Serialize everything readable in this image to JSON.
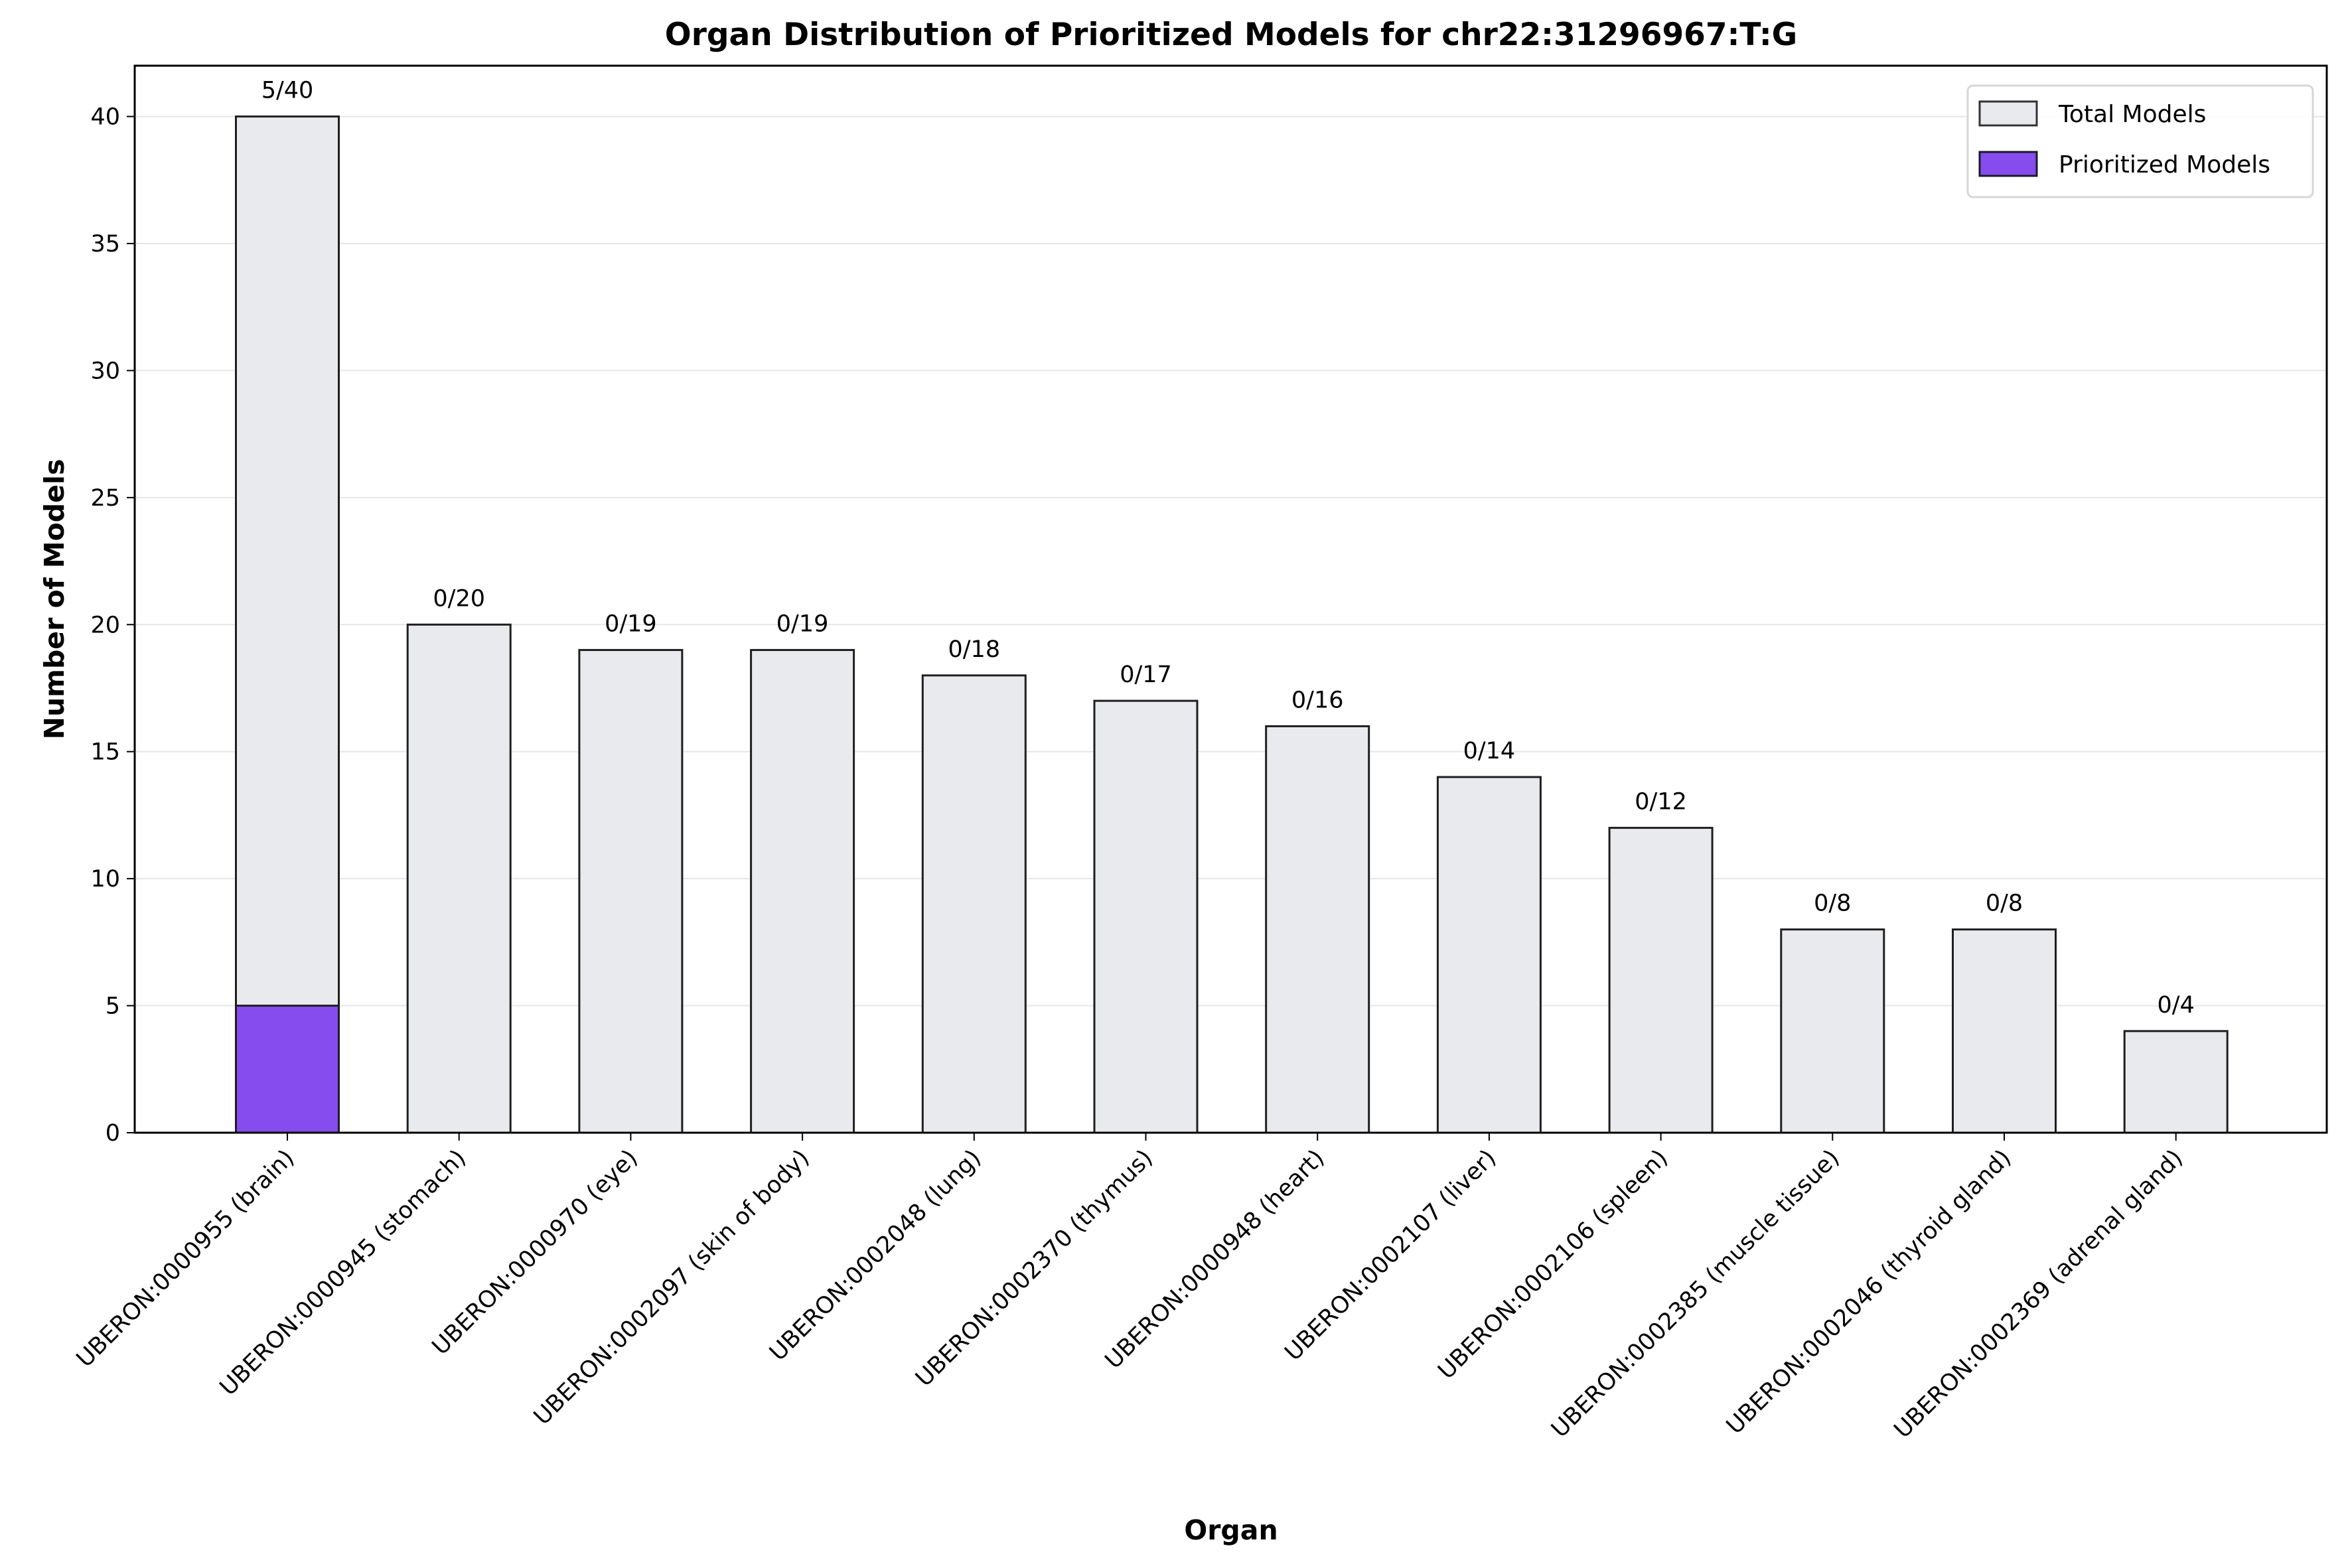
{
  "chart_data": {
    "type": "bar",
    "title": "Organ Distribution of Prioritized Models for chr22:31296967:T:G",
    "xlabel": "Organ",
    "ylabel": "Number of Models",
    "ylim": [
      0,
      42
    ],
    "yticks": [
      0,
      5,
      10,
      15,
      20,
      25,
      30,
      35,
      40
    ],
    "grid": "horizontal",
    "legend_position": "top-right",
    "categories": [
      "UBERON:0000955 (brain)",
      "UBERON:0000945 (stomach)",
      "UBERON:0000970 (eye)",
      "UBERON:0002097 (skin of body)",
      "UBERON:0002048 (lung)",
      "UBERON:0002370 (thymus)",
      "UBERON:0000948 (heart)",
      "UBERON:0002107 (liver)",
      "UBERON:0002106 (spleen)",
      "UBERON:0002385 (muscle tissue)",
      "UBERON:0002046 (thyroid gland)",
      "UBERON:0002369 (adrenal gland)"
    ],
    "series": [
      {
        "name": "Total Models",
        "color": "#e9eaee",
        "values": [
          40,
          20,
          19,
          19,
          18,
          17,
          16,
          14,
          12,
          8,
          8,
          4
        ]
      },
      {
        "name": "Prioritized Models",
        "color": "#874cee",
        "values": [
          5,
          0,
          0,
          0,
          0,
          0,
          0,
          0,
          0,
          0,
          0,
          0
        ]
      }
    ],
    "data_labels": [
      "5/40",
      "0/20",
      "0/19",
      "0/19",
      "0/18",
      "0/17",
      "0/16",
      "0/14",
      "0/12",
      "0/8",
      "0/8",
      "0/4"
    ]
  }
}
